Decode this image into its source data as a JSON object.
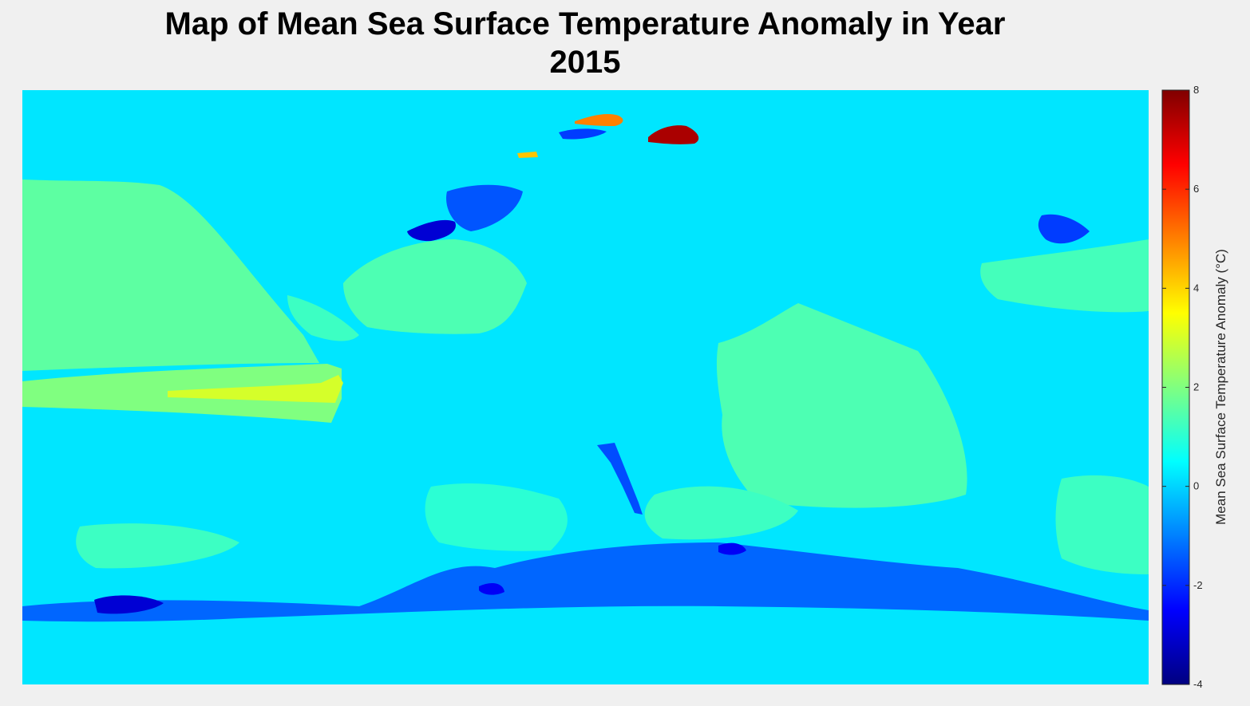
{
  "chart_data": {
    "type": "heatmap",
    "title_lines": [
      "Map of Mean Sea Surface Temperature Anomaly in Year",
      "2015"
    ],
    "colorbar": {
      "label": "Mean Sea Surface Temperature Anomaly (°C)",
      "min": -4,
      "max": 8,
      "ticks": [
        -4,
        -2,
        0,
        2,
        4,
        6,
        8
      ],
      "tick_labels": [
        "-4",
        "-2",
        "0",
        "2",
        "4",
        "6",
        "8"
      ],
      "colormap": "jet"
    },
    "background_value": 0.2,
    "regions": [
      {
        "id": "pacific-tropical-band",
        "value": 2.0
      },
      {
        "id": "pacific-tropical-core",
        "value": 3.0
      },
      {
        "id": "north-pacific-warm",
        "value": 2.2
      },
      {
        "id": "north-pacific-2",
        "value": 1.6
      },
      {
        "id": "atlantic-north",
        "value": 1.4
      },
      {
        "id": "atlantic-tropical",
        "value": 1.2
      },
      {
        "id": "indian-ocean",
        "value": 1.4
      },
      {
        "id": "indian-ocean-south",
        "value": 1.2
      },
      {
        "id": "west-pacific",
        "value": 1.3
      },
      {
        "id": "south-pacific",
        "value": 1.2
      },
      {
        "id": "south-atlantic",
        "value": 1.0
      },
      {
        "id": "arctic-warm-1",
        "value": 7.5
      },
      {
        "id": "arctic-warm-2",
        "value": 5.0
      },
      {
        "id": "arctic-warm-3",
        "value": 4.2
      },
      {
        "id": "labrador-cold",
        "value": -3.0
      },
      {
        "id": "arctic-cold",
        "value": -1.5
      },
      {
        "id": "hudson-cold",
        "value": -1.8
      },
      {
        "id": "east-asia-cold",
        "value": -1.8
      },
      {
        "id": "southern-ocean-cold",
        "value": -1.3
      },
      {
        "id": "southern-ocean-core-1",
        "value": -3.0
      },
      {
        "id": "southern-ocean-core-2",
        "value": -2.6
      },
      {
        "id": "mid-atlantic-ridge-cold",
        "value": -1.6
      }
    ]
  }
}
